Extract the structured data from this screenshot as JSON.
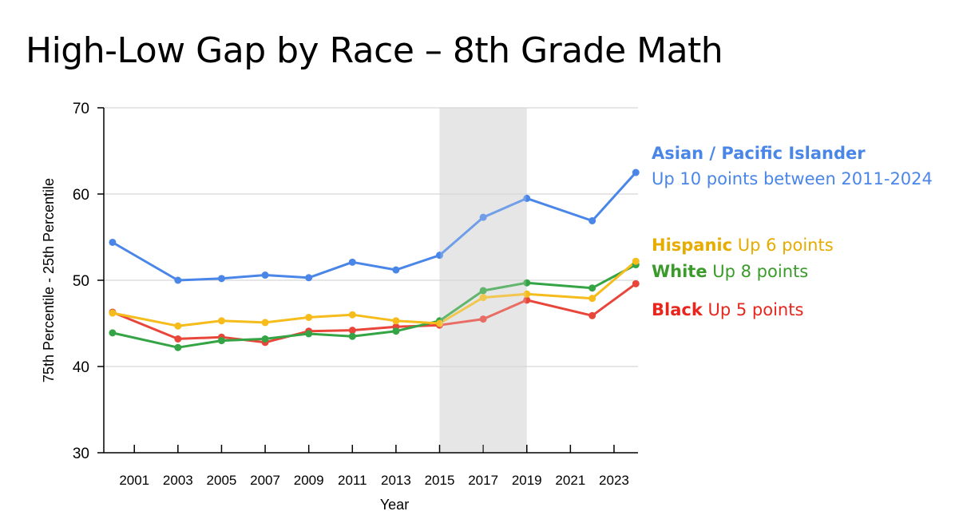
{
  "title": "High-Low Gap by Race – 8th Grade Math",
  "chart_data": {
    "type": "line",
    "title": "High-Low Gap by Race – 8th Grade Math",
    "xlabel": "Year",
    "ylabel": "75th Percentile - 25th Percentile",
    "xlim": [
      1999.6,
      2024.1
    ],
    "ylim": [
      30,
      70
    ],
    "yticks": [
      30,
      40,
      50,
      60,
      70
    ],
    "xticks": [
      2001,
      2003,
      2005,
      2007,
      2009,
      2011,
      2013,
      2015,
      2017,
      2019,
      2021,
      2023
    ],
    "highlight_range": [
      2015,
      2019
    ],
    "x": [
      2000,
      2003,
      2005,
      2007,
      2009,
      2011,
      2013,
      2015,
      2017,
      2019,
      2022,
      2024
    ],
    "series": [
      {
        "name": "Asian / Pacific Islander",
        "color": "#4a86e8",
        "values": [
          54.4,
          50.0,
          50.2,
          50.6,
          50.3,
          52.1,
          51.2,
          52.9,
          57.3,
          59.5,
          56.9,
          62.5
        ]
      },
      {
        "name": "Hispanic",
        "color": "#f5bc1c",
        "values": [
          46.2,
          44.7,
          45.3,
          45.1,
          45.7,
          46.0,
          45.3,
          45.0,
          48.0,
          48.4,
          47.9,
          52.2
        ]
      },
      {
        "name": "White",
        "color": "#34a445",
        "values": [
          43.9,
          42.2,
          43.0,
          43.2,
          43.8,
          43.5,
          44.1,
          45.3,
          48.8,
          49.7,
          49.1,
          51.8
        ]
      },
      {
        "name": "Black",
        "color": "#e8463a",
        "values": [
          46.3,
          43.2,
          43.4,
          42.8,
          44.1,
          44.2,
          44.6,
          44.8,
          45.5,
          47.7,
          45.9,
          49.6
        ]
      }
    ]
  },
  "annotations": {
    "asian_name": "Asian / Pacific Islander",
    "asian_note": "Up 10 points between 2011-2024",
    "hispanic_name": "Hispanic",
    "hispanic_note": " Up 6 points",
    "white_name": "White",
    "white_note": " Up 8 points",
    "black_name": "Black",
    "black_note": " Up 5 points"
  },
  "colors": {
    "asian": "#4a86e8",
    "hispanic": "#e6ac00",
    "white": "#3a9b2a",
    "black": "#e8261d"
  }
}
